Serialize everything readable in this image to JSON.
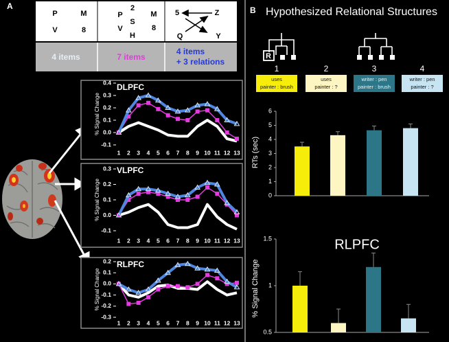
{
  "panel_a": {
    "label": "A",
    "stimuli": [
      [
        "P",
        "M",
        "V",
        "8"
      ],
      [
        "P",
        "2",
        "M",
        "S",
        "V",
        "H",
        "8"
      ],
      [
        "5",
        "Z",
        "Q",
        "Y"
      ]
    ]
  },
  "panel_b": {
    "label": "B",
    "title": "Hypothesized Relational Structures",
    "root_label": "R",
    "structures": [
      {
        "number": "1",
        "lines": [
          "uses",
          "painter : brush"
        ]
      },
      {
        "number": "2",
        "lines": [
          "uses",
          "painter : ?"
        ]
      },
      {
        "number": "3",
        "lines": [
          "writer : pen",
          "painter : brush"
        ]
      },
      {
        "number": "4",
        "lines": [
          "writer : pen",
          "painter : ?"
        ]
      }
    ]
  },
  "chart_data": [
    {
      "type": "line",
      "title": "DLPFC",
      "ylabel": "% Signal Change",
      "x": [
        1,
        2,
        3,
        4,
        5,
        6,
        7,
        8,
        9,
        10,
        11,
        12,
        13
      ],
      "xlim": [
        1,
        13
      ],
      "xticks": [
        1,
        2,
        3,
        4,
        5,
        6,
        7,
        8,
        9,
        10,
        11,
        12,
        13
      ],
      "ylim": [
        -0.1,
        0.4
      ],
      "yticks": [
        0.4,
        0.3,
        0.2,
        0.1,
        {
          "value": 0,
          "label": "0.0"
        },
        -0.1
      ],
      "series": [
        {
          "name": "4 items",
          "color": "#ffffff",
          "marker": "none",
          "values": [
            0.0,
            0.05,
            0.08,
            0.05,
            0.02,
            -0.02,
            -0.03,
            -0.03,
            0.05,
            0.1,
            0.05,
            -0.05,
            -0.07
          ]
        },
        {
          "name": "7 items",
          "color": "#e33be0",
          "marker": "square",
          "values": [
            0.0,
            0.13,
            0.22,
            0.24,
            0.19,
            0.14,
            0.11,
            0.1,
            0.17,
            0.18,
            0.1,
            0.0,
            -0.05
          ]
        },
        {
          "name": "4 items\n+ 3 relations",
          "color": "#4f86e0",
          "marker": "triangle",
          "values": [
            0.0,
            0.18,
            0.28,
            0.3,
            0.26,
            0.2,
            0.17,
            0.18,
            0.22,
            0.23,
            0.19,
            0.1,
            0.07
          ]
        }
      ]
    },
    {
      "type": "line",
      "title": "VLPFC",
      "ylabel": "% Signal Change",
      "x": [
        1,
        2,
        3,
        4,
        5,
        6,
        7,
        8,
        9,
        10,
        11,
        12,
        13
      ],
      "xlim": [
        1,
        13
      ],
      "xticks": [
        1,
        2,
        3,
        4,
        5,
        6,
        7,
        8,
        9,
        10,
        11,
        12,
        13
      ],
      "ylim": [
        -0.1,
        0.3
      ],
      "yticks": [
        0.3,
        0.2,
        0.1,
        {
          "value": 0,
          "label": "0.0"
        },
        -0.1
      ],
      "series": [
        {
          "color": "#ffffff",
          "marker": "none",
          "values": [
            0.0,
            0.02,
            0.05,
            0.07,
            0.02,
            -0.06,
            -0.08,
            -0.08,
            -0.06,
            0.07,
            -0.01,
            -0.06,
            -0.09
          ]
        },
        {
          "color": "#e33be0",
          "marker": "square",
          "values": [
            0.0,
            0.1,
            0.14,
            0.15,
            0.14,
            0.12,
            0.1,
            0.1,
            0.12,
            0.18,
            0.14,
            0.07,
            0.0
          ]
        },
        {
          "color": "#4f86e0",
          "marker": "triangle",
          "values": [
            0.0,
            0.13,
            0.17,
            0.17,
            0.16,
            0.14,
            0.12,
            0.13,
            0.18,
            0.21,
            0.2,
            0.08,
            0.02
          ]
        }
      ]
    },
    {
      "type": "line",
      "title": "RLPFC",
      "ylabel": "% Signal Change",
      "x": [
        1,
        2,
        3,
        4,
        5,
        6,
        7,
        8,
        9,
        10,
        11,
        12,
        13
      ],
      "xlim": [
        1,
        13
      ],
      "xticks": [
        1,
        2,
        3,
        4,
        5,
        6,
        7,
        8,
        9,
        10,
        11,
        12,
        13
      ],
      "ylim": [
        -0.3,
        0.2
      ],
      "yticks": [
        0.2,
        0.1,
        {
          "value": 0,
          "label": "0.0"
        },
        -0.1,
        -0.2,
        -0.3
      ],
      "series": [
        {
          "color": "#ffffff",
          "marker": "none",
          "values": [
            0.0,
            -0.1,
            -0.12,
            -0.08,
            -0.02,
            -0.01,
            -0.04,
            -0.04,
            -0.05,
            0.02,
            -0.05,
            -0.1,
            -0.08
          ]
        },
        {
          "color": "#e33be0",
          "marker": "square",
          "values": [
            0.0,
            -0.18,
            -0.17,
            -0.12,
            -0.05,
            -0.02,
            -0.02,
            -0.03,
            0.0,
            0.08,
            0.05,
            0.0,
            0.01
          ]
        },
        {
          "color": "#4f86e0",
          "marker": "triangle",
          "values": [
            0.0,
            -0.05,
            -0.08,
            -0.05,
            0.03,
            0.1,
            0.17,
            0.18,
            0.14,
            0.13,
            0.12,
            0.02,
            -0.03
          ]
        }
      ]
    },
    {
      "type": "bar",
      "ylabel": "RTs (sec)",
      "categories": [
        null,
        null,
        null,
        null
      ],
      "values": [
        3.5,
        4.3,
        4.65,
        4.8
      ],
      "errors": [
        0.3,
        0.25,
        0.3,
        0.3
      ],
      "colors": [
        "#f6ee0a",
        "#fdf6c3",
        "#2c7688",
        "#c6e4f2"
      ],
      "ylim": [
        0,
        6
      ],
      "yticks": [
        0,
        1,
        2,
        3,
        4,
        5,
        6
      ]
    },
    {
      "type": "bar",
      "title": "RLPFC",
      "ylabel": "% Signal Change",
      "categories": [
        null,
        null,
        null,
        null
      ],
      "values": [
        1.0,
        0.6,
        1.2,
        0.65
      ],
      "errors": [
        0.15,
        0.15,
        0.15,
        0.15
      ],
      "colors": [
        "#f6ee0a",
        "#fdf6c3",
        "#2c7688",
        "#c6e4f2"
      ],
      "ylim": [
        0.5,
        1.5
      ],
      "yticks": [
        0.5,
        1,
        1.5
      ]
    }
  ]
}
